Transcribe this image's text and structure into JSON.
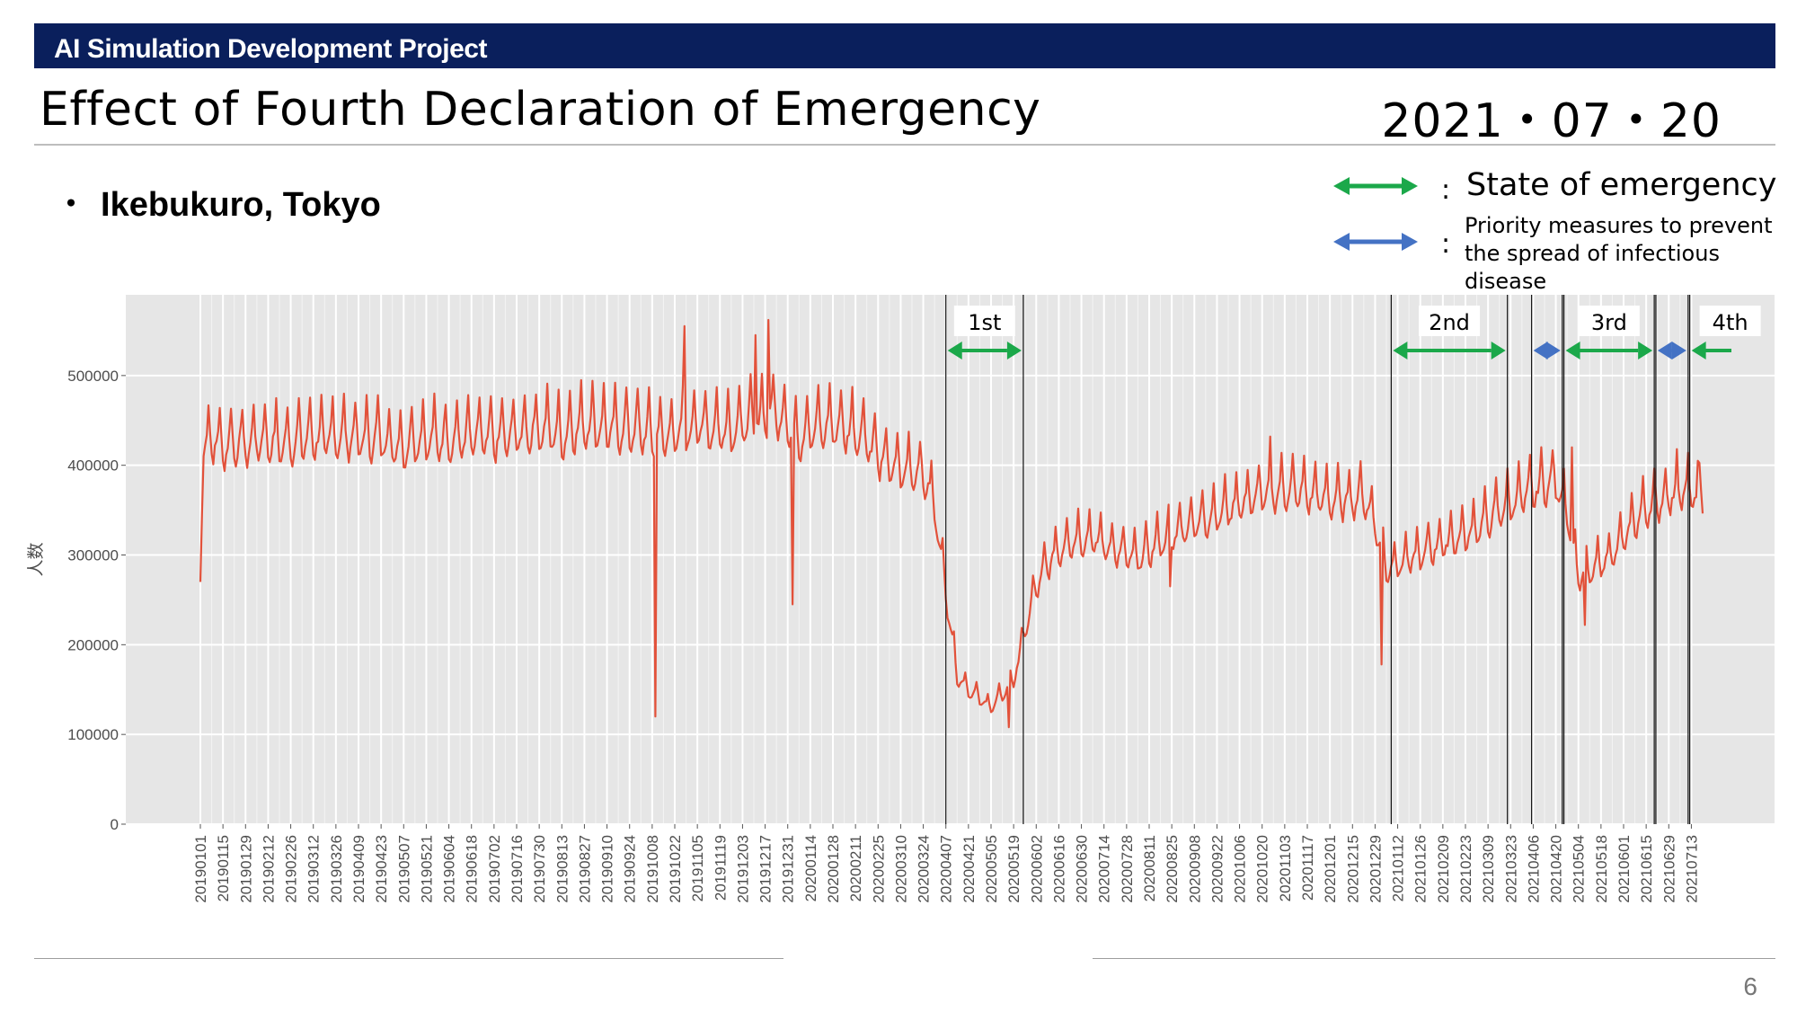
{
  "header": {
    "project": "AI Simulation Development Project",
    "title": "Effect of Fourth Declaration of Emergency",
    "date": "2021・07・20"
  },
  "subtitle": {
    "bullet": "・",
    "text": "Ikebukuro, Tokyo"
  },
  "legend": {
    "items": [
      {
        "color": "#1ba84a",
        "colon": ":",
        "lines": [
          "State of emergency"
        ]
      },
      {
        "color": "#4472c4",
        "colon": ":",
        "lines": [
          "Priority measures to prevent",
          "the spread of infectious disease"
        ]
      }
    ]
  },
  "page_number": "6",
  "chart_data": {
    "type": "line",
    "ylabel": "人数",
    "ylim": [
      0,
      590000
    ],
    "yticks": [
      0,
      100000,
      200000,
      300000,
      400000,
      500000
    ],
    "ytick_labels": [
      "0",
      "100000",
      "200000",
      "300000",
      "400000",
      "500000"
    ],
    "x_start": "20190101",
    "x_end": "20210720",
    "xtick_labels": [
      "20190101",
      "20190115",
      "20190129",
      "20190212",
      "20190226",
      "20190312",
      "20190326",
      "20190409",
      "20190423",
      "20190507",
      "20190521",
      "20190604",
      "20190618",
      "20190702",
      "20190716",
      "20190730",
      "20190813",
      "20190827",
      "20190910",
      "20190924",
      "20191008",
      "20191022",
      "20191105",
      "20191119",
      "20191203",
      "20191217",
      "20191231",
      "20200114",
      "20200128",
      "20200211",
      "20200225",
      "20200310",
      "20200324",
      "20200407",
      "20200421",
      "20200505",
      "20200519",
      "20200602",
      "20200616",
      "20200630",
      "20200714",
      "20200728",
      "20200811",
      "20200825",
      "20200908",
      "20200922",
      "20201006",
      "20201020",
      "20201103",
      "20201117",
      "20201201",
      "20201215",
      "20201229",
      "20210112",
      "20210126",
      "20210209",
      "20210223",
      "20210309",
      "20210323",
      "20210406",
      "20210420",
      "20210504",
      "20210518",
      "20210601",
      "20210615",
      "20210629",
      "20210713"
    ],
    "series": [
      {
        "color": "#e2513a",
        "weekly_points": [
          [
            "20190101",
            270000
          ],
          [
            "20190103",
            420000
          ],
          [
            "20190108",
            430000
          ],
          [
            "20190115",
            420000
          ],
          [
            "20190122",
            425000
          ],
          [
            "20190129",
            422000
          ],
          [
            "20190205",
            428000
          ],
          [
            "20190212",
            428000
          ],
          [
            "20190219",
            425000
          ],
          [
            "20190226",
            425000
          ],
          [
            "20190305",
            430000
          ],
          [
            "20190312",
            432000
          ],
          [
            "20190319",
            430000
          ],
          [
            "20190326",
            432000
          ],
          [
            "20190402",
            432000
          ],
          [
            "20190409",
            430000
          ],
          [
            "20190416",
            430000
          ],
          [
            "20190423",
            432000
          ],
          [
            "20190430",
            422000
          ],
          [
            "20190507",
            420000
          ],
          [
            "20190514",
            428000
          ],
          [
            "20190521",
            430000
          ],
          [
            "20190528",
            430000
          ],
          [
            "20190604",
            428000
          ],
          [
            "20190611",
            430000
          ],
          [
            "20190618",
            432000
          ],
          [
            "20190625",
            432000
          ],
          [
            "20190702",
            430000
          ],
          [
            "20190709",
            432000
          ],
          [
            "20190716",
            435000
          ],
          [
            "20190723",
            438000
          ],
          [
            "20190730",
            440000
          ],
          [
            "20190806",
            440000
          ],
          [
            "20190813",
            432000
          ],
          [
            "20190820",
            440000
          ],
          [
            "20190827",
            445000
          ],
          [
            "20190903",
            445000
          ],
          [
            "20190910",
            442000
          ],
          [
            "20190917",
            440000
          ],
          [
            "20190924",
            440000
          ],
          [
            "20191001",
            438000
          ],
          [
            "20191008",
            435000
          ],
          [
            "20191015",
            432000
          ],
          [
            "20191022",
            435000
          ],
          [
            "20191029",
            440000
          ],
          [
            "20191105",
            445000
          ],
          [
            "20191112",
            442000
          ],
          [
            "20191119",
            440000
          ],
          [
            "20191126",
            440000
          ],
          [
            "20191203",
            445000
          ],
          [
            "20191210",
            450000
          ],
          [
            "20191217",
            455000
          ],
          [
            "20191224",
            460000
          ],
          [
            "20191231",
            445000
          ],
          [
            "20200107",
            430000
          ],
          [
            "20200114",
            440000
          ],
          [
            "20200121",
            442000
          ],
          [
            "20200128",
            445000
          ],
          [
            "20200204",
            440000
          ],
          [
            "20200211",
            438000
          ],
          [
            "20200218",
            430000
          ],
          [
            "20200225",
            410000
          ],
          [
            "20200303",
            400000
          ],
          [
            "20200310",
            395000
          ],
          [
            "20200317",
            395000
          ],
          [
            "20200324",
            390000
          ],
          [
            "20200331",
            355000
          ],
          [
            "20200407",
            260000
          ],
          [
            "20200414",
            165000
          ],
          [
            "20200421",
            150000
          ],
          [
            "20200428",
            140000
          ],
          [
            "20200505",
            130000
          ],
          [
            "20200512",
            145000
          ],
          [
            "20200519",
            160000
          ],
          [
            "20200526",
            215000
          ],
          [
            "20200602",
            265000
          ],
          [
            "20200609",
            290000
          ],
          [
            "20200616",
            305000
          ],
          [
            "20200623",
            315000
          ],
          [
            "20200630",
            318000
          ],
          [
            "20200707",
            318000
          ],
          [
            "20200714",
            312000
          ],
          [
            "20200721",
            305000
          ],
          [
            "20200728",
            300000
          ],
          [
            "20200804",
            295000
          ],
          [
            "20200811",
            305000
          ],
          [
            "20200818",
            315000
          ],
          [
            "20200825",
            322000
          ],
          [
            "20200901",
            330000
          ],
          [
            "20200908",
            335000
          ],
          [
            "20200915",
            340000
          ],
          [
            "20200922",
            345000
          ],
          [
            "20200929",
            352000
          ],
          [
            "20201006",
            358000
          ],
          [
            "20201013",
            362000
          ],
          [
            "20201020",
            368000
          ],
          [
            "20201027",
            370000
          ],
          [
            "20201103",
            372000
          ],
          [
            "20201110",
            372000
          ],
          [
            "20201117",
            368000
          ],
          [
            "20201124",
            365000
          ],
          [
            "20201201",
            362000
          ],
          [
            "20201208",
            360000
          ],
          [
            "20201215",
            362000
          ],
          [
            "20201222",
            365000
          ],
          [
            "20201229",
            335000
          ],
          [
            "20210105",
            285000
          ],
          [
            "20210112",
            290000
          ],
          [
            "20210119",
            295000
          ],
          [
            "20210126",
            300000
          ],
          [
            "20210202",
            308000
          ],
          [
            "20210209",
            312000
          ],
          [
            "20210216",
            318000
          ],
          [
            "20210223",
            322000
          ],
          [
            "20210302",
            330000
          ],
          [
            "20210309",
            340000
          ],
          [
            "20210316",
            350000
          ],
          [
            "20210323",
            358000
          ],
          [
            "20210330",
            365000
          ],
          [
            "20210406",
            372000
          ],
          [
            "20210413",
            378000
          ],
          [
            "20210420",
            382000
          ],
          [
            "20210427",
            350000
          ],
          [
            "20210504",
            275000
          ],
          [
            "20210511",
            280000
          ],
          [
            "20210518",
            292000
          ],
          [
            "20210525",
            300000
          ],
          [
            "20210601",
            318000
          ],
          [
            "20210608",
            338000
          ],
          [
            "20210615",
            352000
          ],
          [
            "20210622",
            358000
          ],
          [
            "20210629",
            365000
          ],
          [
            "20210706",
            372000
          ],
          [
            "20210713",
            370000
          ],
          [
            "20210720",
            358000
          ]
        ],
        "spikes": [
          [
            "20191010",
            120000
          ],
          [
            "20200103",
            245000
          ],
          [
            "20191028",
            555000
          ],
          [
            "20191219",
            562000
          ],
          [
            "20191211",
            545000
          ],
          [
            "20200516",
            108000
          ],
          [
            "20210102",
            178000
          ],
          [
            "20210430",
            420000
          ],
          [
            "20210508",
            222000
          ],
          [
            "20210704",
            418000
          ],
          [
            "20210717",
            405000
          ],
          [
            "20201025",
            432000
          ],
          [
            "20200824",
            265000
          ]
        ]
      }
    ],
    "periods": [
      {
        "label": "1st",
        "type": "State of emergency",
        "start": "20200407",
        "end": "20200525"
      },
      {
        "label": "2nd",
        "type": "State of emergency",
        "start": "20210108",
        "end": "20210321"
      },
      {
        "label": "",
        "type": "Priority measures to prevent the spread of infectious disease",
        "start": "20210405",
        "end": "20210424"
      },
      {
        "label": "3rd",
        "type": "State of emergency",
        "start": "20210425",
        "end": "20210620"
      },
      {
        "label": "",
        "type": "Priority measures to prevent the spread of infectious disease",
        "start": "20210621",
        "end": "20210711"
      },
      {
        "label": "4th",
        "type": "State of emergency",
        "start": "20210712",
        "end": "20210720"
      }
    ],
    "grid": true,
    "legend_placement": "top-right"
  }
}
